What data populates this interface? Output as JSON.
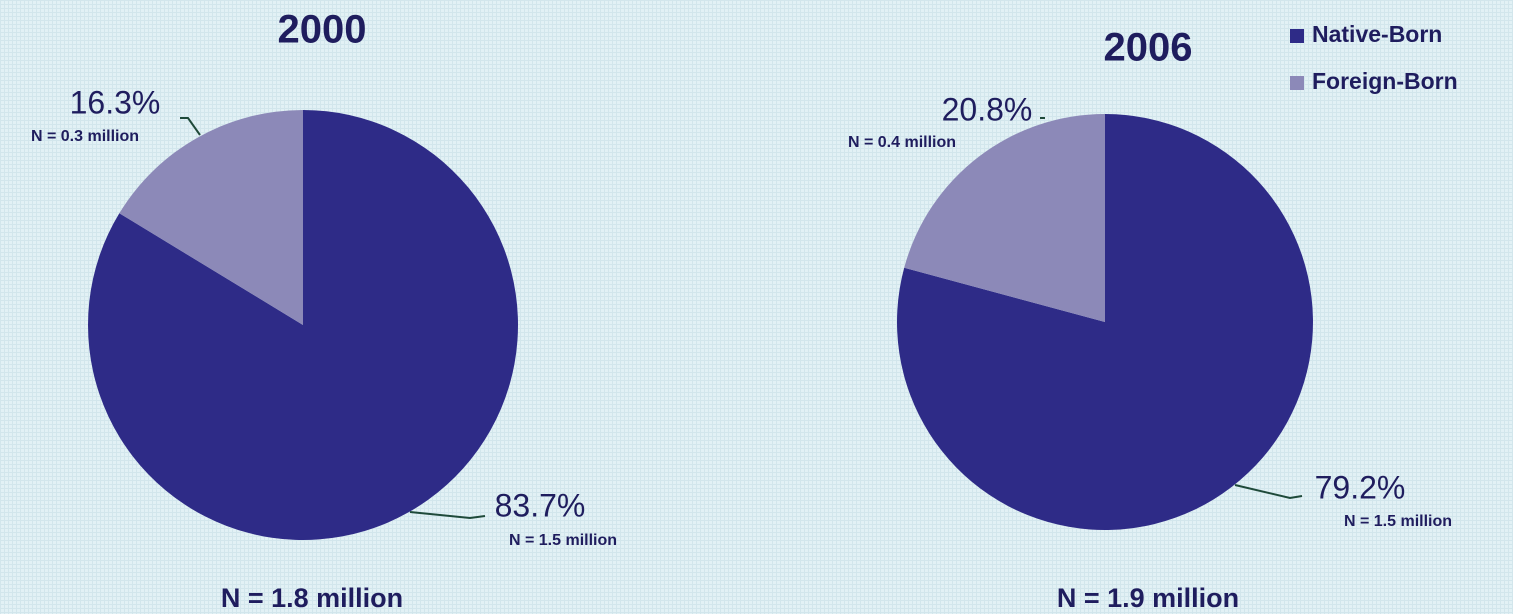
{
  "chart_data": [
    {
      "type": "pie",
      "title": "2000",
      "categories": [
        "Native-Born",
        "Foreign-Born"
      ],
      "values": [
        83.7,
        16.3
      ],
      "value_labels": [
        "83.7%",
        "16.3%"
      ],
      "slice_notes": [
        "N = 1.5 million",
        "N = 0.3 million"
      ],
      "colors": [
        "#2e2b87",
        "#8c89b8"
      ],
      "note": "N = 1.8 million"
    },
    {
      "type": "pie",
      "title": "2006",
      "categories": [
        "Native-Born",
        "Foreign-Born"
      ],
      "values": [
        79.2,
        20.8
      ],
      "value_labels": [
        "79.2%",
        "20.8%"
      ],
      "slice_notes": [
        "N = 1.5 million",
        "N = 0.4 million"
      ],
      "colors": [
        "#2e2b87",
        "#8c89b8"
      ],
      "note": "N = 1.9 million",
      "legend": "top-right"
    }
  ]
}
